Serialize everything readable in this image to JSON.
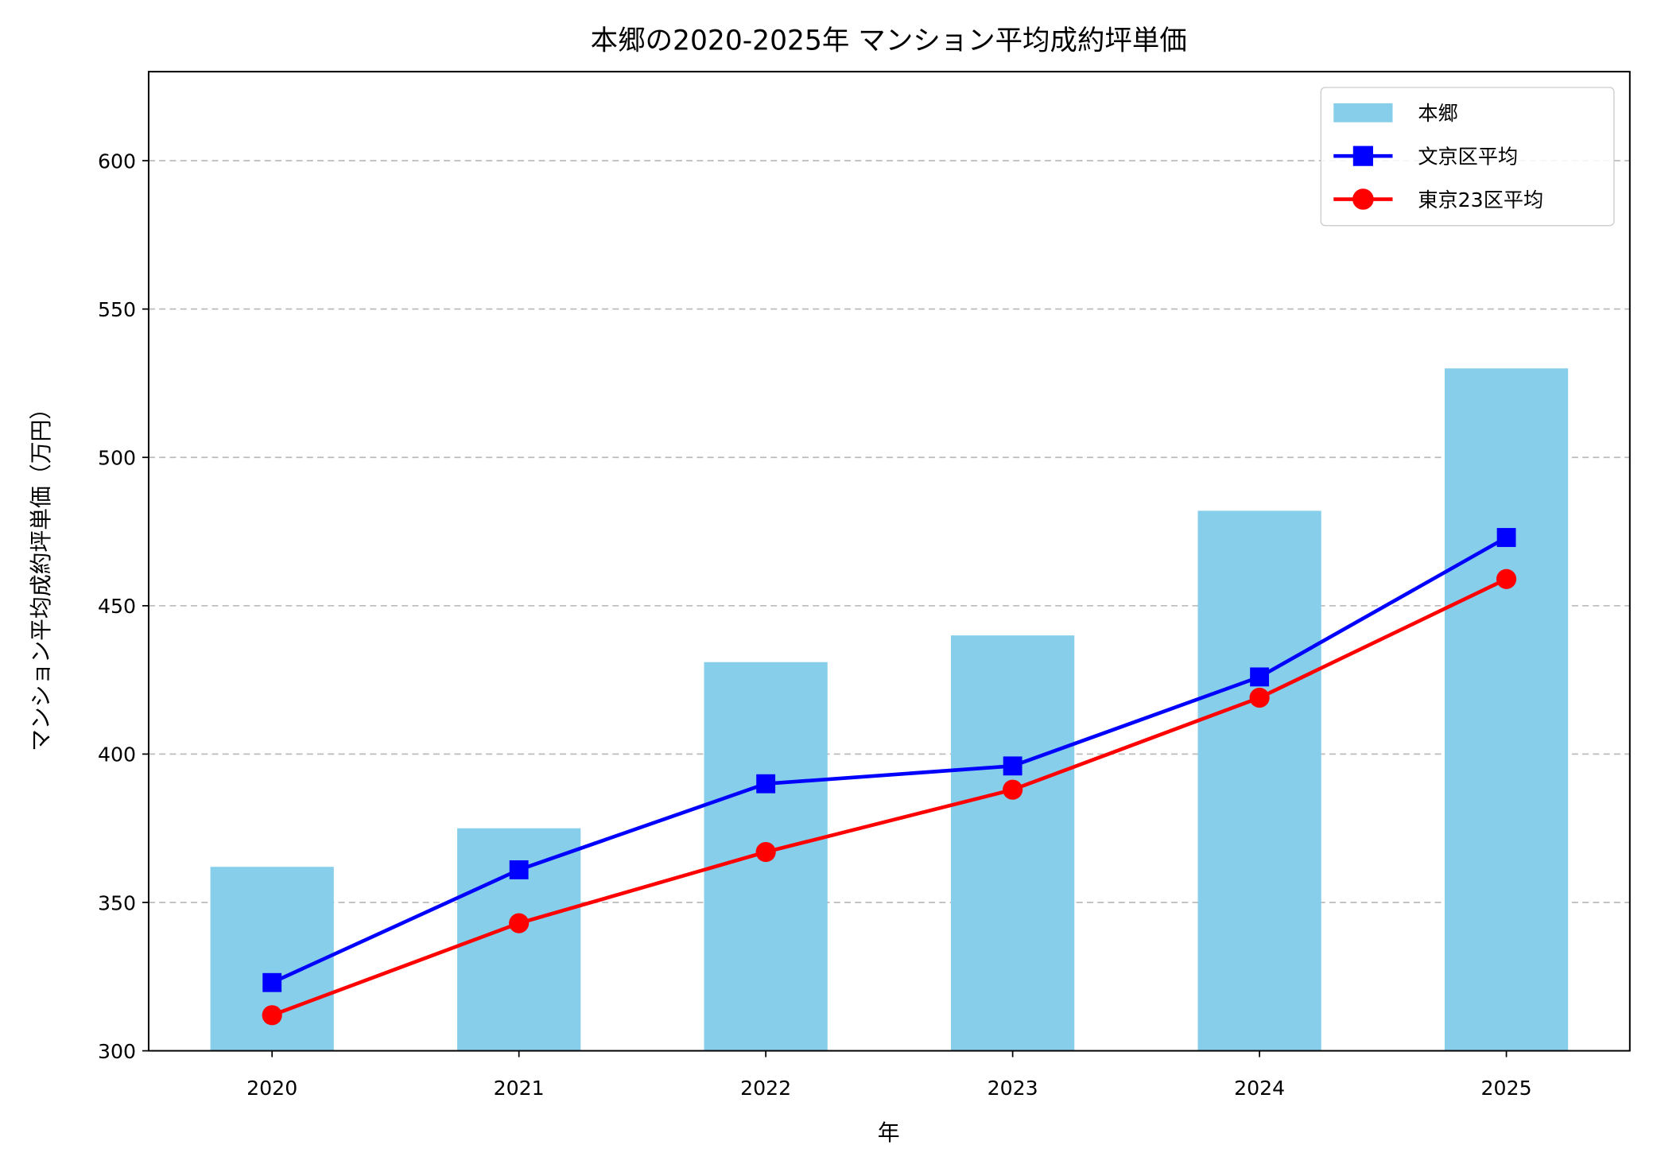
{
  "chart_data": {
    "type": "bar+line",
    "title": "本郷の2020-2025年 マンション平均成約坪単価",
    "xlabel": "年",
    "ylabel": "マンション平均成約坪単価（万円）",
    "categories": [
      "2020",
      "2021",
      "2022",
      "2023",
      "2024",
      "2025"
    ],
    "ylim": [
      300,
      630
    ],
    "yticks": [
      300,
      350,
      400,
      450,
      500,
      550,
      600
    ],
    "grid": "y, dashed",
    "legend_position": "top-right",
    "series": [
      {
        "name": "本郷",
        "kind": "bar",
        "color": "#87CEEB",
        "values": [
          362,
          375,
          431,
          440,
          482,
          530
        ]
      },
      {
        "name": "文京区平均",
        "kind": "line",
        "marker": "square",
        "color": "#0000FF",
        "values": [
          323,
          361,
          390,
          396,
          426,
          473
        ]
      },
      {
        "name": "東京23区平均",
        "kind": "line",
        "marker": "circle",
        "color": "#FF0000",
        "values": [
          312,
          343,
          367,
          388,
          419,
          459
        ]
      }
    ]
  }
}
